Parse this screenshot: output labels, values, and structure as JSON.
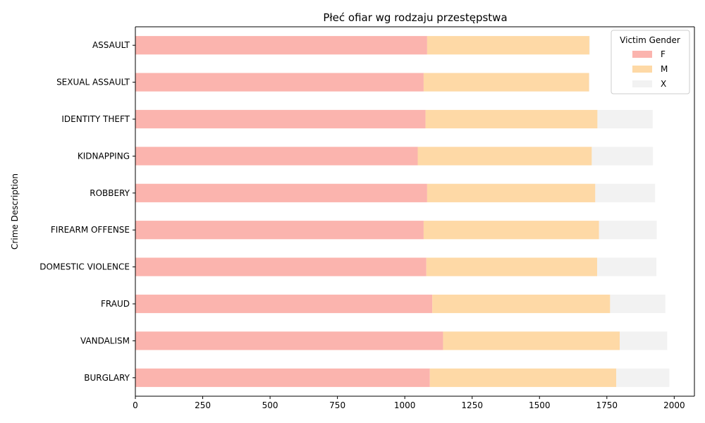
{
  "chart_data": {
    "type": "bar",
    "orientation": "horizontal",
    "stacked": true,
    "title": "Płeć ofiar wg rodzaju przestępstwa",
    "xlabel": "",
    "ylabel": "Crime Description",
    "xlim": [
      0,
      2075
    ],
    "xticks": [
      0,
      250,
      500,
      750,
      1000,
      1250,
      1500,
      1750,
      2000
    ],
    "categories": [
      "BURGLARY",
      "VANDALISM",
      "FRAUD",
      "DOMESTIC VIOLENCE",
      "FIREARM OFFENSE",
      "ROBBERY",
      "KIDNAPPING",
      "IDENTITY THEFT",
      "SEXUAL ASSAULT",
      "ASSAULT"
    ],
    "series": [
      {
        "name": "F",
        "color": "#fbb4ae",
        "values": [
          1093,
          1142,
          1102,
          1080,
          1070,
          1083,
          1048,
          1077,
          1070,
          1083
        ]
      },
      {
        "name": "M",
        "color": "#fed9a6",
        "values": [
          692,
          656,
          660,
          634,
          651,
          624,
          646,
          638,
          614,
          602
        ]
      },
      {
        "name": "X",
        "color": "#f2f2f2",
        "values": [
          197,
          176,
          205,
          220,
          214,
          222,
          227,
          205,
          1,
          2
        ]
      }
    ],
    "legend": {
      "title": "Victim Gender",
      "placement": "upper right"
    },
    "grid": false
  }
}
